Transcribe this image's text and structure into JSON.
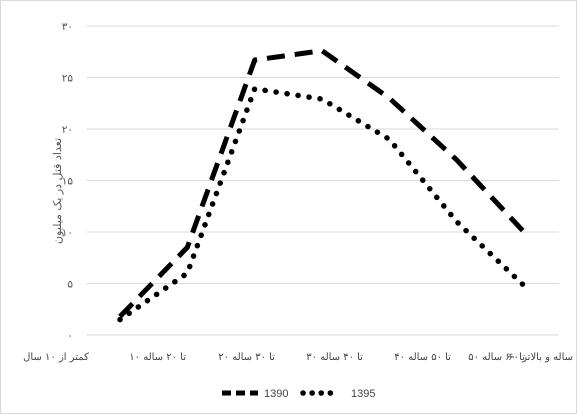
{
  "chart_data": {
    "type": "line",
    "ylabel": "تعداد قتل در یک میلیون",
    "ylim": [
      0,
      30
    ],
    "y_ticks": [
      0,
      5,
      10,
      15,
      20,
      25,
      30
    ],
    "y_tick_labels": [
      "۰",
      "۵",
      "۱۰",
      "۱۵",
      "۲۰",
      "۲۵",
      "۳۰"
    ],
    "categories": [
      "کمتر از ۱۰ سال",
      "۱۰ تا ۲۰ ساله",
      "۲۰ تا ۳۰ ساله",
      "۳۰ تا ۴۰ ساله",
      "۴۰ تا ۵۰ ساله",
      "۵۰ تا ۶۰ ساله",
      "۶۰ ساله و بالاتر"
    ],
    "series": [
      {
        "name": "1390",
        "values": [
          1.8,
          8.5,
          26.7,
          27.6,
          23.0,
          17.0,
          10.0
        ],
        "style": "dashed",
        "color": "#000000"
      },
      {
        "name": "1395",
        "values": [
          1.5,
          6.0,
          23.9,
          22.9,
          19.0,
          11.0,
          4.8
        ],
        "style": "dotted",
        "color": "#000000"
      }
    ],
    "grid": "horizontal",
    "grid_color": "#d9d9d9",
    "legend_position": "bottom"
  }
}
